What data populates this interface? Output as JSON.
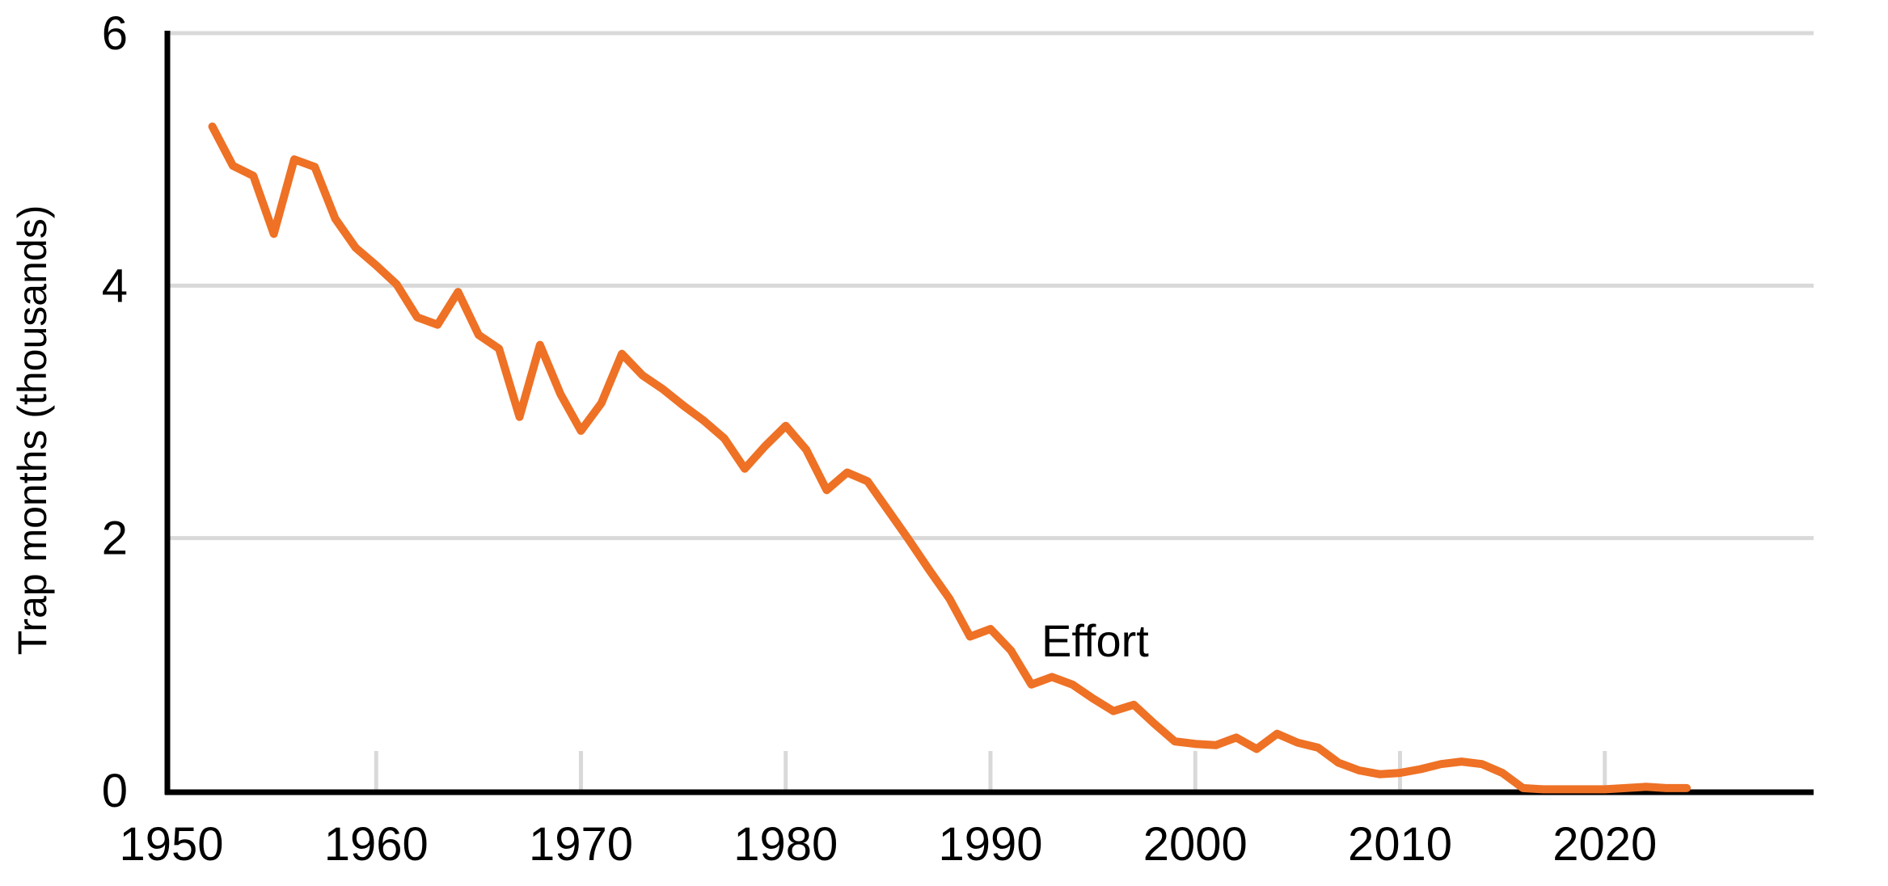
{
  "chart_data": {
    "type": "line",
    "title": "",
    "xlabel": "",
    "ylabel": "Trap months (thousands)",
    "annotation": {
      "text": "Effort"
    },
    "x": [
      1952,
      1953,
      1954,
      1955,
      1956,
      1957,
      1958,
      1959,
      1960,
      1961,
      1962,
      1963,
      1964,
      1965,
      1966,
      1967,
      1968,
      1969,
      1970,
      1971,
      1972,
      1973,
      1974,
      1975,
      1976,
      1977,
      1978,
      1979,
      1980,
      1981,
      1982,
      1983,
      1984,
      1985,
      1986,
      1987,
      1988,
      1989,
      1990,
      1991,
      1992,
      1993,
      1994,
      1995,
      1996,
      1997,
      1998,
      1999,
      2000,
      2001,
      2002,
      2003,
      2004,
      2005,
      2006,
      2007,
      2008,
      2009,
      2010,
      2011,
      2012,
      2013,
      2014,
      2015,
      2016,
      2017,
      2018,
      2019,
      2020,
      2021,
      2022,
      2023,
      2024
    ],
    "series": [
      {
        "name": "Effort",
        "color": "#EE7125",
        "values": [
          5.26,
          4.95,
          4.87,
          4.41,
          5.0,
          4.94,
          4.53,
          4.3,
          4.16,
          4.01,
          3.75,
          3.69,
          3.95,
          3.61,
          3.5,
          2.96,
          3.53,
          3.14,
          2.85,
          3.07,
          3.46,
          3.29,
          3.18,
          3.05,
          2.93,
          2.79,
          2.55,
          2.73,
          2.89,
          2.7,
          2.38,
          2.52,
          2.45,
          2.22,
          1.99,
          1.75,
          1.52,
          1.22,
          1.28,
          1.11,
          0.84,
          0.9,
          0.84,
          0.73,
          0.63,
          0.68,
          0.53,
          0.39,
          0.37,
          0.36,
          0.42,
          0.33,
          0.45,
          0.38,
          0.34,
          0.22,
          0.16,
          0.13,
          0.14,
          0.17,
          0.21,
          0.23,
          0.21,
          0.14,
          0.02,
          0.01,
          0.01,
          0.01,
          0.01,
          0.02,
          0.03,
          0.02,
          0.02
        ]
      }
    ],
    "x_ticks": [
      1950,
      1960,
      1970,
      1980,
      1990,
      2000,
      2010,
      2020
    ],
    "y_ticks": [
      0,
      2,
      4,
      6
    ],
    "xlim": [
      1950,
      2030
    ],
    "ylim": [
      0,
      6
    ],
    "grid": "horizontal-y",
    "legend_position": "none-inline-label",
    "colors": {
      "line": "#EE7125",
      "gridline": "#D9D9D9",
      "axis": "#000000",
      "text": "#000000",
      "background": "#FFFFFF"
    }
  }
}
